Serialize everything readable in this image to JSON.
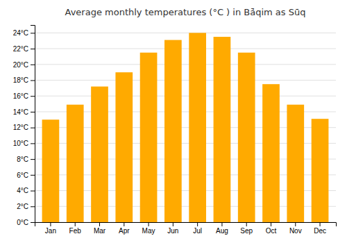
{
  "chart_data": {
    "type": "bar",
    "title": "Average monthly temperatures (°C ) in Bā̇qim as Sū̇q",
    "categories": [
      "Jan",
      "Feb",
      "Mar",
      "Apr",
      "May",
      "Jun",
      "Jul",
      "Aug",
      "Sep",
      "Oct",
      "Nov",
      "Dec"
    ],
    "values": [
      13.0,
      14.9,
      17.2,
      19.0,
      21.5,
      23.1,
      24.0,
      23.5,
      21.5,
      17.5,
      14.9,
      13.1
    ],
    "color": "#FFAA00",
    "ylim": [
      0,
      25
    ],
    "yticks": [
      {
        "value": 0,
        "label": "0°C"
      },
      {
        "value": 2,
        "label": "2°C"
      },
      {
        "value": 4,
        "label": "4°C"
      },
      {
        "value": 6,
        "label": "6°C"
      },
      {
        "value": 8,
        "label": "8°C"
      },
      {
        "value": 10,
        "label": "10°C"
      },
      {
        "value": 12,
        "label": "12°C"
      },
      {
        "value": 14,
        "label": "14°C"
      },
      {
        "value": 16,
        "label": "16°C"
      },
      {
        "value": 18,
        "label": "18°C"
      },
      {
        "value": 20,
        "label": "20°C"
      },
      {
        "value": 22,
        "label": "22°C"
      },
      {
        "value": 24,
        "label": "24°C"
      }
    ],
    "grid": true
  }
}
